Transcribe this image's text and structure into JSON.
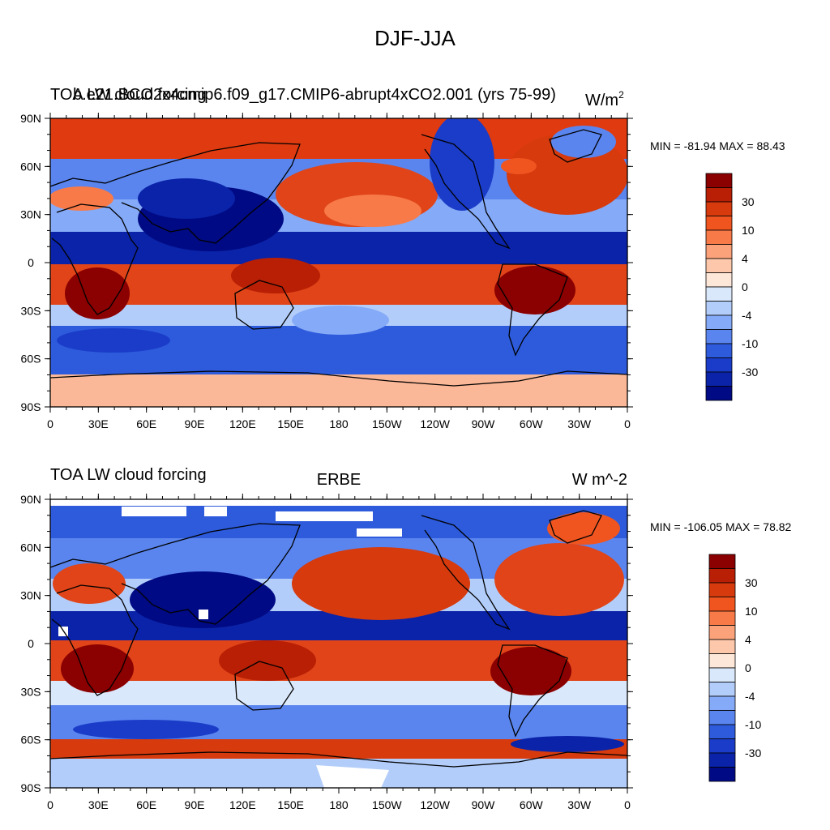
{
  "title": "DJF-JJA",
  "chart_data": [
    {
      "type": "heatmap",
      "panel_left_title": "TOA LW cloud forcing",
      "panel_center_title": "",
      "panel_case_title": "b.e21.BCO2x4cmip6.f09_g17.CMIP6-abrupt4xCO2.001 (yrs 75-99)",
      "units": "W/m",
      "units_sup": "2",
      "min_text": "MIN = -81.94 MAX =  88.43",
      "min": -81.94,
      "max": 88.43,
      "x_tick_labels": [
        "0",
        "30E",
        "60E",
        "90E",
        "120E",
        "150E",
        "180",
        "150W",
        "120W",
        "90W",
        "60W",
        "30W",
        "0"
      ],
      "y_tick_labels": [
        "90N",
        "60N",
        "30N",
        "0",
        "30S",
        "60S",
        "90S"
      ],
      "xlim": [
        0,
        360
      ],
      "ylim": [
        -90,
        90
      ],
      "colorbar_levels": [
        "30",
        "10",
        "4",
        "0",
        "-4",
        "-10",
        "-30"
      ],
      "colorbar_colors": [
        "#8b0000",
        "#b81f05",
        "#d63a0d",
        "#f05520",
        "#f77a48",
        "#fba27a",
        "#fdc7ab",
        "#fde7d8",
        "#dae8fb",
        "#b3cdfa",
        "#85aaf7",
        "#5a85ef",
        "#2d5bdc",
        "#1a3cc8",
        "#0a23a8",
        "#000a84"
      ]
    },
    {
      "type": "heatmap",
      "panel_left_title": "TOA LW cloud forcing",
      "panel_center_title": "ERBE",
      "panel_units": "W m^-2",
      "min_text": "MIN = -106.05 MAX =  78.82",
      "min": -106.05,
      "max": 78.82,
      "x_tick_labels": [
        "0",
        "30E",
        "60E",
        "90E",
        "120E",
        "150E",
        "180",
        "150W",
        "120W",
        "90W",
        "60W",
        "30W",
        "0"
      ],
      "y_tick_labels": [
        "90N",
        "60N",
        "30N",
        "0",
        "30S",
        "60S",
        "90S"
      ],
      "xlim": [
        0,
        360
      ],
      "ylim": [
        -90,
        90
      ],
      "colorbar_levels": [
        "30",
        "10",
        "4",
        "0",
        "-4",
        "-10",
        "-30"
      ],
      "colorbar_colors": [
        "#8b0000",
        "#b81f05",
        "#d63a0d",
        "#f05520",
        "#f77a48",
        "#fba27a",
        "#fdc7ab",
        "#fde7d8",
        "#dae8fb",
        "#b3cdfa",
        "#85aaf7",
        "#5a85ef",
        "#2d5bdc",
        "#1a3cc8",
        "#0a23a8",
        "#000a84"
      ]
    }
  ]
}
